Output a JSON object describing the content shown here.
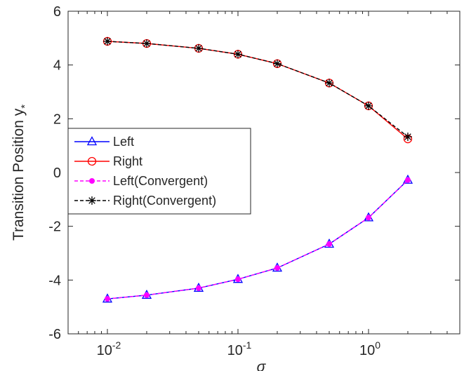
{
  "chart_data": {
    "type": "line",
    "xlabel": "σ",
    "ylabel": "Transition Position y",
    "ylabel_subscript": "*",
    "x_scale": "log",
    "xlim": [
      0.005,
      5
    ],
    "ylim": [
      -6,
      6
    ],
    "x_ticks": [
      {
        "value": 0.01,
        "base": "10",
        "exp": "-2"
      },
      {
        "value": 0.1,
        "base": "10",
        "exp": "-1"
      },
      {
        "value": 1,
        "base": "10",
        "exp": "0"
      }
    ],
    "y_ticks": [
      {
        "value": -6,
        "label": "-6"
      },
      {
        "value": -4,
        "label": "-4"
      },
      {
        "value": -2,
        "label": "-2"
      },
      {
        "value": 0,
        "label": "0"
      },
      {
        "value": 2,
        "label": "2"
      },
      {
        "value": 4,
        "label": "4"
      },
      {
        "value": 6,
        "label": "6"
      }
    ],
    "grid": false,
    "legend_position": "center-left",
    "x": [
      0.01,
      0.02,
      0.05,
      0.1,
      0.2,
      0.5,
      1,
      2
    ],
    "series": [
      {
        "name": "Left",
        "color": "#0000ff",
        "marker": "triangle",
        "line": "solid",
        "values": [
          -4.7,
          -4.56,
          -4.3,
          -3.97,
          -3.55,
          -2.66,
          -1.68,
          -0.28
        ]
      },
      {
        "name": "Right",
        "color": "#ff0000",
        "marker": "circle",
        "line": "solid",
        "values": [
          4.88,
          4.8,
          4.62,
          4.4,
          4.05,
          3.33,
          2.48,
          1.25
        ]
      },
      {
        "name": "Left(Convergent)",
        "color": "#ff00ff",
        "marker": "dot",
        "line": "dashed",
        "values": [
          -4.7,
          -4.56,
          -4.3,
          -3.97,
          -3.55,
          -2.66,
          -1.68,
          -0.28
        ]
      },
      {
        "name": "Right(Convergent)",
        "color": "#000000",
        "marker": "asterisk",
        "line": "dashed",
        "values": [
          4.88,
          4.8,
          4.62,
          4.4,
          4.05,
          3.33,
          2.48,
          1.33
        ]
      }
    ]
  }
}
